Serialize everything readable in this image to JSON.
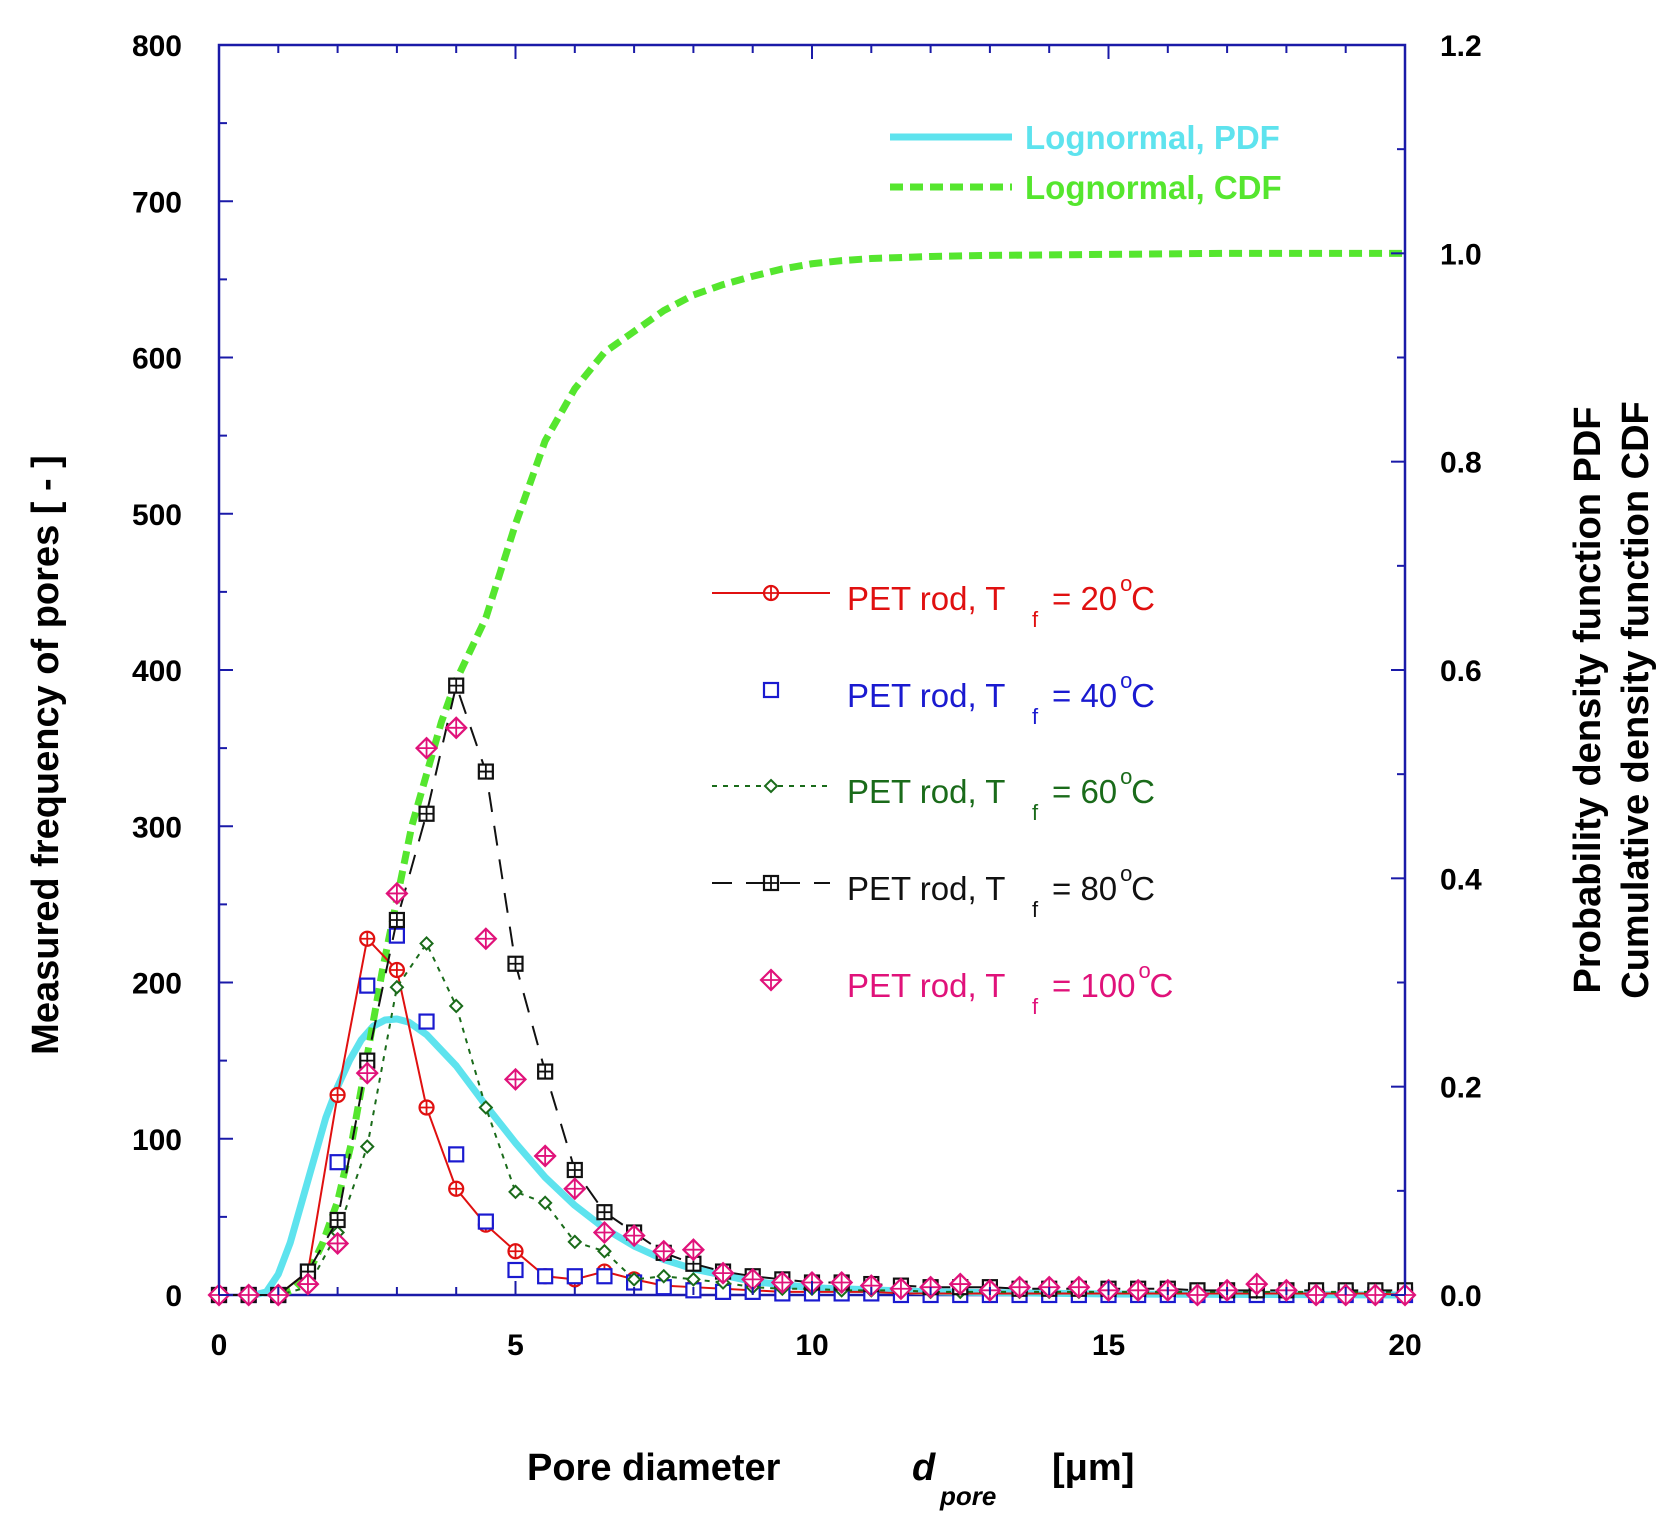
{
  "chart_data": {
    "type": "scatter",
    "title": "",
    "xlabel": {
      "main": "Pore diameter",
      "symbol": "d",
      "subscript": "pore",
      "unit": "[μm]"
    },
    "ylabel_left": "Measured frequency of pores    [ - ]",
    "ylabel_right": [
      "Probability density function   PDF",
      "Cumulative density function   CDF"
    ],
    "xlim": [
      0,
      20
    ],
    "ylim_left": [
      0,
      800
    ],
    "ylim_right": [
      0,
      1.2
    ],
    "xticks": [
      0,
      5,
      10,
      15,
      20
    ],
    "yticks_left": [
      0,
      100,
      200,
      300,
      400,
      500,
      600,
      700,
      800
    ],
    "yticks_right": [
      "0.0",
      "0.2",
      "0.4",
      "0.6",
      "0.8",
      "1.0",
      "1.2"
    ],
    "grid": false,
    "legend_position": "center-right",
    "x": [
      0,
      0.5,
      1,
      1.5,
      2,
      2.5,
      3,
      3.5,
      4,
      4.5,
      5,
      5.5,
      6,
      6.5,
      7,
      7.5,
      8,
      8.5,
      9,
      9.5,
      10,
      10.5,
      11,
      11.5,
      12,
      12.5,
      13,
      13.5,
      14,
      14.5,
      15,
      15.5,
      16,
      16.5,
      17,
      17.5,
      18,
      18.5,
      19,
      19.5,
      20
    ],
    "series": [
      {
        "name": "PET rod, T_f = 20 °C",
        "label_main": "PET rod, T",
        "label_sub": "f",
        "label_value": "=  20",
        "label_unit": "C",
        "color": "#e01010",
        "marker": "circle-plus",
        "line": "solid",
        "values": [
          0,
          0,
          0,
          15,
          128,
          228,
          208,
          120,
          68,
          45,
          28,
          12,
          10,
          15,
          10,
          6,
          5,
          4,
          3,
          2,
          2,
          2,
          2,
          1,
          1,
          1,
          1,
          1,
          1,
          1,
          1,
          1,
          1,
          1,
          1,
          1,
          1,
          1,
          1,
          1,
          0
        ]
      },
      {
        "name": "PET rod, T_f = 40 °C",
        "label_main": "PET rod, T",
        "label_sub": "f",
        "label_value": "=  40",
        "label_unit": "C",
        "color": "#1a1ad0",
        "marker": "square",
        "line": "none",
        "values": [
          0,
          0,
          0,
          15,
          85,
          198,
          230,
          175,
          90,
          47,
          16,
          12,
          12,
          12,
          8,
          5,
          3,
          2,
          2,
          1,
          1,
          1,
          1,
          0,
          0,
          0,
          0,
          0,
          0,
          0,
          0,
          0,
          0,
          0,
          0,
          0,
          0,
          0,
          0,
          0,
          0
        ]
      },
      {
        "name": "PET rod, T_f = 60 °C",
        "label_main": "PET rod, T",
        "label_sub": "f",
        "label_value": "=  60",
        "label_unit": "C",
        "color": "#1a6b1a",
        "marker": "diamond-small",
        "line": "dotted",
        "values": [
          0,
          0,
          0,
          5,
          40,
          95,
          197,
          225,
          185,
          120,
          66,
          59,
          34,
          28,
          10,
          12,
          10,
          8,
          5,
          4,
          4,
          3,
          3,
          3,
          2,
          2,
          2,
          2,
          2,
          2,
          2,
          2,
          2,
          2,
          2,
          2,
          2,
          2,
          2,
          2,
          2
        ]
      },
      {
        "name": "PET rod, T_f = 80 °C",
        "label_main": "PET rod, T",
        "label_sub": "f",
        "label_value": "=  80",
        "label_unit": "C",
        "color": "#111111",
        "marker": "square-plus",
        "line": "dashed",
        "values": [
          0,
          0,
          0,
          15,
          48,
          150,
          240,
          308,
          390,
          335,
          212,
          143,
          80,
          53,
          40,
          27,
          20,
          15,
          12,
          10,
          8,
          8,
          7,
          6,
          5,
          5,
          5,
          4,
          4,
          4,
          4,
          4,
          4,
          3,
          3,
          3,
          3,
          3,
          3,
          3,
          3
        ]
      },
      {
        "name": "PET rod, T_f = 100 °C",
        "label_main": "PET rod, T",
        "label_sub": "f",
        "label_value": "=  100",
        "label_unit": "C",
        "color": "#e0127a",
        "marker": "diamond-plus",
        "line": "none",
        "values": [
          0,
          0,
          0,
          7,
          33,
          142,
          257,
          350,
          363,
          228,
          138,
          89,
          68,
          40,
          38,
          28,
          29,
          14,
          10,
          8,
          8,
          8,
          6,
          4,
          5,
          7,
          3,
          5,
          5,
          5,
          3,
          3,
          3,
          0,
          3,
          7,
          3,
          0,
          0,
          0,
          0
        ]
      }
    ],
    "curves": [
      {
        "name": "Lognormal, PDF",
        "axis": "right",
        "color": "#5ee3ee",
        "style": "solid",
        "x": [
          0.6,
          0.8,
          1.0,
          1.2,
          1.4,
          1.6,
          1.8,
          2.0,
          2.2,
          2.4,
          2.6,
          2.8,
          3.0,
          3.2,
          3.5,
          4.0,
          4.5,
          5.0,
          5.5,
          6.0,
          6.5,
          7.0,
          7.5,
          8.0,
          9.0,
          10.0,
          12.0,
          15.0,
          20.0
        ],
        "values": [
          0.0,
          0.003,
          0.02,
          0.05,
          0.09,
          0.13,
          0.17,
          0.2,
          0.225,
          0.245,
          0.258,
          0.264,
          0.265,
          0.262,
          0.25,
          0.22,
          0.182,
          0.146,
          0.113,
          0.086,
          0.064,
          0.047,
          0.034,
          0.025,
          0.013,
          0.007,
          0.003,
          0.001,
          0.0
        ]
      },
      {
        "name": "Lognormal, CDF",
        "axis": "right",
        "color": "#55e62e",
        "style": "dashed",
        "x": [
          1.0,
          1.25,
          1.5,
          1.75,
          2.0,
          2.25,
          2.5,
          2.75,
          3.0,
          3.25,
          3.5,
          3.75,
          4.0,
          4.5,
          5.0,
          5.5,
          6.0,
          6.5,
          7.0,
          7.5,
          8.0,
          8.5,
          9.0,
          9.5,
          10.0,
          10.5,
          11.0,
          12.0,
          13.0,
          15.0,
          17.0,
          20.0
        ],
        "values": [
          0.0,
          0.005,
          0.02,
          0.05,
          0.09,
          0.15,
          0.23,
          0.31,
          0.38,
          0.45,
          0.5,
          0.55,
          0.59,
          0.65,
          0.74,
          0.82,
          0.87,
          0.905,
          0.925,
          0.945,
          0.96,
          0.97,
          0.978,
          0.985,
          0.99,
          0.993,
          0.995,
          0.997,
          0.998,
          0.999,
          1.0,
          1.0
        ]
      }
    ]
  }
}
